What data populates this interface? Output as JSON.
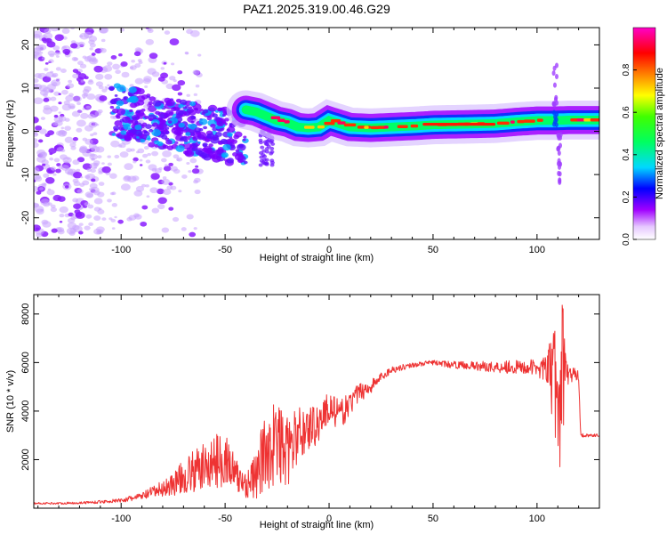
{
  "title": "PAZ1.2025.319.00.46.G29",
  "chart_data": [
    {
      "type": "heatmap",
      "xlabel": "Height of straight line (km)",
      "ylabel": "Frequency (Hz)",
      "xlim": [
        -142,
        130
      ],
      "ylim": [
        -25,
        24
      ],
      "xticks": [
        -100,
        -50,
        0,
        50,
        100
      ],
      "yticks": [
        -20,
        -10,
        0,
        10,
        20
      ],
      "colorbar": {
        "label": "Normalized spectral amplitude",
        "range": [
          0,
          1
        ],
        "ticks": [
          0.0,
          0.2,
          0.4,
          0.6,
          0.8
        ],
        "colors": [
          "#ffffff",
          "#a000ff",
          "#0000ff",
          "#00d8ff",
          "#00ff00",
          "#ffff00",
          "#ff7f00",
          "#ff0000",
          "#ff00c8"
        ]
      },
      "ridge": {
        "x": [
          -40,
          -35,
          -30,
          -25,
          -20,
          -15,
          -10,
          -5,
          0,
          10,
          20,
          30,
          40,
          50,
          60,
          70,
          80,
          90,
          100,
          108,
          115,
          130
        ],
        "freq": [
          5,
          4.5,
          3.5,
          2.5,
          2,
          1,
          0.8,
          1,
          2.5,
          1,
          0.8,
          1,
          1.2,
          1.5,
          1.6,
          1.7,
          1.8,
          2.2,
          2.5,
          2.5,
          2.6,
          2.6
        ]
      }
    },
    {
      "type": "line",
      "xlabel": "Height of straight line (km)",
      "ylabel": "SNR (10 * v/v)",
      "xlim": [
        -142,
        130
      ],
      "ylim": [
        0,
        8800
      ],
      "xticks": [
        -100,
        -50,
        0,
        50,
        100
      ],
      "yticks": [
        2000,
        4000,
        6000,
        8000
      ],
      "color": "#ee3333",
      "series": [
        {
          "x": [
            -142,
            -130,
            -120,
            -110,
            -100,
            -95,
            -90,
            -85,
            -80,
            -75,
            -70,
            -65,
            -60,
            -55,
            -50,
            -45,
            -40,
            -35,
            -30,
            -25,
            -20,
            -15,
            -10,
            -5,
            0,
            5,
            10,
            15,
            20,
            25,
            30,
            35,
            40,
            45,
            50,
            55,
            60,
            65,
            70,
            75,
            80,
            85,
            90,
            95,
            100,
            105,
            108,
            110,
            112,
            115,
            120,
            121,
            125,
            130
          ],
          "y": [
            200,
            200,
            220,
            260,
            320,
            400,
            500,
            650,
            800,
            1000,
            1300,
            1500,
            1700,
            1900,
            2100,
            1300,
            1000,
            1300,
            2500,
            2700,
            2300,
            3000,
            3300,
            3500,
            4200,
            3800,
            4300,
            4800,
            5000,
            5400,
            5700,
            5800,
            5900,
            5950,
            6000,
            5950,
            5900,
            5900,
            5850,
            5850,
            5800,
            5850,
            5800,
            5800,
            5800,
            5700,
            5500,
            4000,
            5800,
            5500,
            5500,
            3000,
            3000,
            3000
          ],
          "spread": [
            40,
            40,
            50,
            60,
            80,
            120,
            150,
            250,
            350,
            500,
            700,
            900,
            1000,
            1100,
            1200,
            800,
            600,
            1000,
            1800,
            1900,
            1400,
            1200,
            1000,
            800,
            700,
            600,
            500,
            400,
            300,
            200,
            150,
            120,
            100,
            100,
            100,
            120,
            150,
            150,
            200,
            200,
            250,
            300,
            300,
            300,
            350,
            600,
            2500,
            3500,
            3000,
            400,
            200,
            80,
            60,
            60
          ]
        }
      ]
    }
  ]
}
